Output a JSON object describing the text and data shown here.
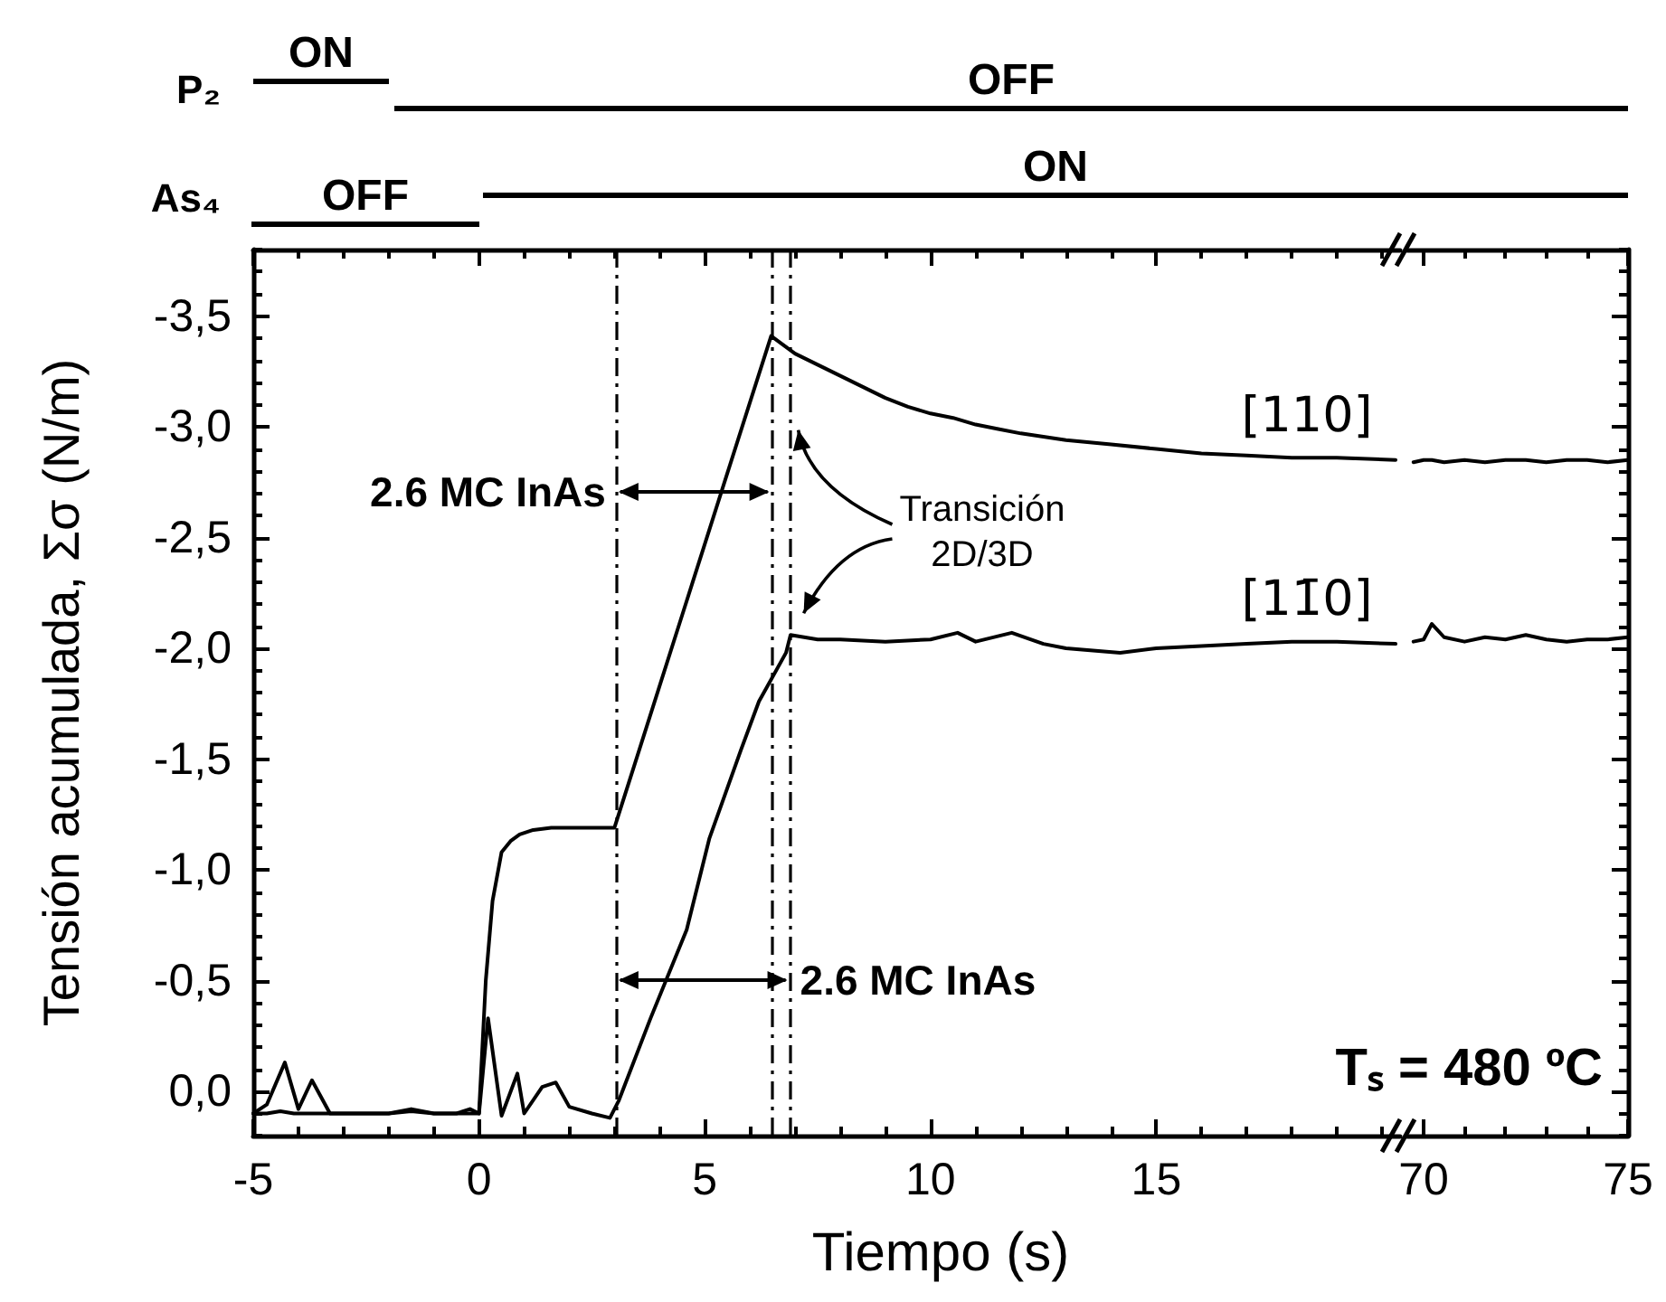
{
  "chart_data": [
    {
      "type": "line",
      "xlabel": "Tiempo (s)",
      "ylabel": "Tensión acumulada, Σσ (N/m)",
      "marker": "none",
      "line_style": "solid",
      "xlim": [
        -5,
        20.4
      ],
      "xticks": [
        -5,
        {
          "value": -4,
          "label": null
        },
        {
          "value": -3,
          "label": null
        },
        {
          "value": -2,
          "label": null
        },
        {
          "value": -1,
          "label": null
        },
        0,
        {
          "value": 1,
          "label": null
        },
        {
          "value": 2,
          "label": null
        },
        {
          "value": 3,
          "label": null
        },
        {
          "value": 4,
          "label": null
        },
        5,
        {
          "value": 6,
          "label": null
        },
        {
          "value": 7,
          "label": null
        },
        {
          "value": 8,
          "label": null
        },
        {
          "value": 9,
          "label": null
        },
        10,
        {
          "value": 11,
          "label": null
        },
        {
          "value": 12,
          "label": null
        },
        {
          "value": 13,
          "label": null
        },
        {
          "value": 14,
          "label": null
        },
        15,
        {
          "value": 16,
          "label": null
        },
        {
          "value": 17,
          "label": null
        },
        {
          "value": 18,
          "label": null
        },
        {
          "value": 19,
          "label": null
        },
        {
          "value": 20,
          "label": null
        }
      ],
      "ylim": [
        0.2,
        -3.8
      ],
      "yticks": [
        {
          "value": -3.5,
          "label": "-3,5"
        },
        {
          "value": -3,
          "label": "-3,0"
        },
        {
          "value": -2.5,
          "label": "-2,5"
        },
        {
          "value": -2,
          "label": "-2,0"
        },
        {
          "value": -1.5,
          "label": "-1,5"
        },
        {
          "value": -1,
          "label": "-1,0"
        },
        {
          "value": -0.5,
          "label": "-0,5"
        },
        {
          "value": 0,
          "label": "0,0"
        },
        {
          "value": -3.8,
          "label": null
        },
        {
          "value": -3.7,
          "label": null
        },
        {
          "value": -3.6,
          "label": null
        },
        {
          "value": -3.4,
          "label": null
        },
        {
          "value": -3.3,
          "label": null
        },
        {
          "value": -3.2,
          "label": null
        },
        {
          "value": -3.1,
          "label": null
        },
        {
          "value": -2.9,
          "label": null
        },
        {
          "value": -2.8,
          "label": null
        },
        {
          "value": -2.7,
          "label": null
        },
        {
          "value": -2.6,
          "label": null
        },
        {
          "value": -2.4,
          "label": null
        },
        {
          "value": -2.3,
          "label": null
        },
        {
          "value": -2.2,
          "label": null
        },
        {
          "value": -2.1,
          "label": null
        },
        {
          "value": -1.9,
          "label": null
        },
        {
          "value": -1.8,
          "label": null
        },
        {
          "value": -1.7,
          "label": null
        },
        {
          "value": -1.6,
          "label": null
        },
        {
          "value": -1.4,
          "label": null
        },
        {
          "value": -1.3,
          "label": null
        },
        {
          "value": -1.2,
          "label": null
        },
        {
          "value": -1.1,
          "label": null
        },
        {
          "value": -0.9,
          "label": null
        },
        {
          "value": -0.8,
          "label": null
        },
        {
          "value": -0.7,
          "label": null
        },
        {
          "value": -0.6,
          "label": null
        },
        {
          "value": -0.4,
          "label": null
        },
        {
          "value": -0.3,
          "label": null
        },
        {
          "value": -0.2,
          "label": null
        },
        {
          "value": -0.1,
          "label": null
        },
        {
          "value": 0.1,
          "label": null
        },
        {
          "value": 0.2,
          "label": null
        }
      ],
      "series": [
        {
          "name": "[110]",
          "color": "#000000",
          "x": [
            -5,
            -4.7,
            -4.4,
            -4.1,
            -3.8,
            -3.5,
            -3,
            -2.5,
            -2,
            -1.5,
            -1,
            -0.5,
            -0.2,
            0,
            0.15,
            0.3,
            0.5,
            0.7,
            0.9,
            1.2,
            1.6,
            2,
            2.5,
            3.0,
            3.5,
            4,
            4.5,
            5,
            5.5,
            6,
            6.47,
            7,
            7.5,
            8,
            8.5,
            9,
            9.5,
            10,
            10.5,
            11,
            11.5,
            12,
            13,
            14,
            15,
            16,
            17,
            18,
            19,
            20.3
          ],
          "values": [
            0.1,
            0.1,
            0.09,
            0.1,
            0.1,
            0.1,
            0.1,
            0.1,
            0.1,
            0.09,
            0.1,
            0.1,
            0.1,
            0.1,
            -0.5,
            -0.86,
            -1.08,
            -1.13,
            -1.16,
            -1.18,
            -1.19,
            -1.19,
            -1.19,
            -1.19,
            -1.51,
            -1.83,
            -2.15,
            -2.47,
            -2.79,
            -3.11,
            -3.41,
            -3.33,
            -3.28,
            -3.23,
            -3.18,
            -3.13,
            -3.09,
            -3.06,
            -3.04,
            -3.01,
            -2.99,
            -2.97,
            -2.94,
            -2.92,
            -2.9,
            -2.88,
            -2.87,
            -2.86,
            -2.86,
            -2.85
          ]
        },
        {
          "name": "[11̄0]",
          "color": "#000000",
          "x": [
            -5,
            -4.7,
            -4.3,
            -4.0,
            -3.7,
            -3.3,
            -3,
            -2.5,
            -2,
            -1.5,
            -1,
            -0.5,
            -0.2,
            0,
            0.2,
            0.5,
            0.85,
            1.0,
            1.4,
            1.7,
            2.0,
            2.5,
            2.9,
            3.1,
            3.8,
            4.6,
            5.1,
            5.8,
            6.2,
            6.8,
            6.9,
            7.5,
            8,
            9,
            10,
            10.6,
            11,
            11.8,
            12.5,
            13,
            14.2,
            15,
            16,
            17,
            18,
            19,
            20.3
          ],
          "values": [
            0.1,
            0.06,
            -0.13,
            0.08,
            -0.05,
            0.1,
            0.1,
            0.1,
            0.1,
            0.08,
            0.1,
            0.1,
            0.08,
            0.1,
            -0.33,
            0.11,
            -0.08,
            0.1,
            -0.02,
            -0.04,
            0.07,
            0.1,
            0.12,
            0.04,
            -0.33,
            -0.73,
            -1.14,
            -1.54,
            -1.76,
            -1.98,
            -2.06,
            -2.04,
            -2.04,
            -2.03,
            -2.04,
            -2.07,
            -2.03,
            -2.07,
            -2.02,
            -2.0,
            -1.98,
            -2.0,
            -2.01,
            -2.02,
            -2.03,
            -2.03,
            -2.02
          ]
        }
      ],
      "ref_lines": [
        {
          "axis": "x",
          "value": 3.05,
          "line_style": "dashed",
          "color": "#000000"
        },
        {
          "axis": "x",
          "value": 6.47,
          "line_style": "dashed",
          "color": "#000000"
        },
        {
          "axis": "x",
          "value": 6.87,
          "line_style": "dashed",
          "color": "#000000"
        }
      ],
      "annotations": [
        "P₂",
        "ON",
        "OFF",
        "As₄",
        "OFF",
        "ON",
        "2.6 MC InAs",
        "2.6 MC InAs",
        "Transición\n2D/3D"
      ]
    },
    {
      "type": "line",
      "marker": "none",
      "line_style": "solid",
      "tick_labels": "x",
      "xlim": [
        69.6,
        75
      ],
      "xticks": [
        70,
        {
          "value": 71,
          "label": null
        },
        {
          "value": 72,
          "label": null
        },
        {
          "value": 73,
          "label": null
        },
        {
          "value": 74,
          "label": null
        },
        75
      ],
      "ylim": [
        0.2,
        -3.8
      ],
      "yticks": [
        {
          "value": -3.5,
          "label": null
        },
        {
          "value": -3,
          "label": null
        },
        {
          "value": -2.5,
          "label": null
        },
        {
          "value": -2,
          "label": null
        },
        {
          "value": -1.5,
          "label": null
        },
        {
          "value": -1,
          "label": null
        },
        {
          "value": -0.5,
          "label": null
        },
        {
          "value": 0,
          "label": null
        },
        {
          "value": -3.8,
          "label": null
        },
        {
          "value": -3.7,
          "label": null
        },
        {
          "value": -3.6,
          "label": null
        },
        {
          "value": -3.4,
          "label": null
        },
        {
          "value": -3.3,
          "label": null
        },
        {
          "value": -3.2,
          "label": null
        },
        {
          "value": -3.1,
          "label": null
        },
        {
          "value": -2.9,
          "label": null
        },
        {
          "value": -2.8,
          "label": null
        },
        {
          "value": -2.7,
          "label": null
        },
        {
          "value": -2.6,
          "label": null
        },
        {
          "value": -2.4,
          "label": null
        },
        {
          "value": -2.3,
          "label": null
        },
        {
          "value": -2.2,
          "label": null
        },
        {
          "value": -2.1,
          "label": null
        },
        {
          "value": -1.9,
          "label": null
        },
        {
          "value": -1.8,
          "label": null
        },
        {
          "value": -1.7,
          "label": null
        },
        {
          "value": -1.6,
          "label": null
        },
        {
          "value": -1.4,
          "label": null
        },
        {
          "value": -1.3,
          "label": null
        },
        {
          "value": -1.2,
          "label": null
        },
        {
          "value": -1.1,
          "label": null
        },
        {
          "value": -0.9,
          "label": null
        },
        {
          "value": -0.8,
          "label": null
        },
        {
          "value": -0.7,
          "label": null
        },
        {
          "value": -0.6,
          "label": null
        },
        {
          "value": -0.4,
          "label": null
        },
        {
          "value": -0.3,
          "label": null
        },
        {
          "value": -0.2,
          "label": null
        },
        {
          "value": -0.1,
          "label": null
        },
        {
          "value": 0.1,
          "label": null
        },
        {
          "value": 0.2,
          "label": null
        }
      ],
      "x": [
        69.75,
        70,
        70.2,
        70.5,
        71,
        71.5,
        72,
        72.5,
        73,
        73.5,
        74,
        74.5,
        75
      ],
      "series": [
        {
          "color": "#000000",
          "values": [
            -2.84,
            -2.85,
            -2.85,
            -2.84,
            -2.85,
            -2.84,
            -2.85,
            -2.85,
            -2.84,
            -2.85,
            -2.85,
            -2.84,
            -2.85
          ]
        },
        {
          "color": "#000000",
          "values": [
            -2.03,
            -2.04,
            -2.11,
            -2.05,
            -2.03,
            -2.05,
            -2.04,
            -2.06,
            -2.04,
            -2.03,
            -2.04,
            -2.04,
            -2.05
          ]
        }
      ],
      "annotations": [
        "Tₛ = 480 ºC"
      ]
    }
  ]
}
